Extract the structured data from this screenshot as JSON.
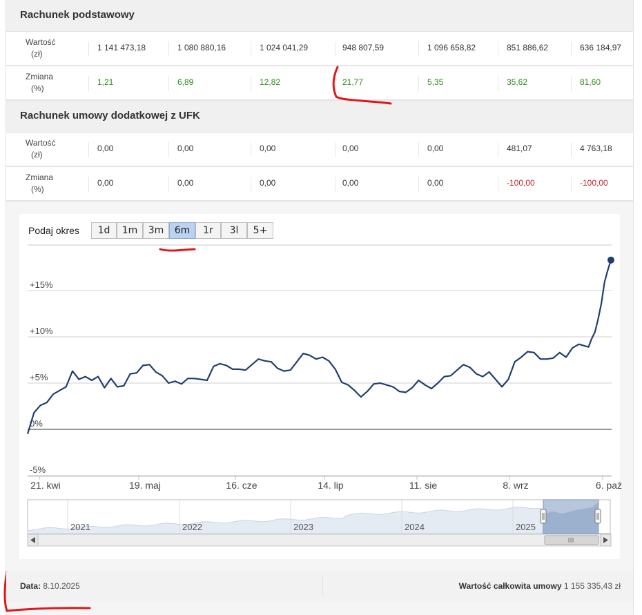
{
  "sections": [
    {
      "title": "Rachunek podstawowy",
      "rows": [
        {
          "label_line1": "Wartość",
          "label_line2": "(zł)",
          "values": [
            "1 141 473,18",
            "1 080 880,16",
            "1 024 041,29",
            "948 807,59",
            "1 096 658,82",
            "851 886,62",
            "636 184,97"
          ],
          "kinds": [
            "n",
            "n",
            "n",
            "n",
            "n",
            "n",
            "n"
          ]
        },
        {
          "label_line1": "Zmiana",
          "label_line2": "(%)",
          "values": [
            "1,21",
            "6,89",
            "12,82",
            "21,77",
            "5,35",
            "35,62",
            "81,60"
          ],
          "kinds": [
            "pos",
            "pos",
            "pos",
            "pos",
            "pos",
            "pos",
            "pos"
          ]
        }
      ]
    },
    {
      "title": "Rachunek umowy dodatkowej z UFK",
      "rows": [
        {
          "label_line1": "Wartość",
          "label_line2": "(zł)",
          "values": [
            "0,00",
            "0,00",
            "0,00",
            "0,00",
            "0,00",
            "481,07",
            "4 763,18"
          ],
          "kinds": [
            "n",
            "n",
            "n",
            "n",
            "n",
            "n",
            "n"
          ]
        },
        {
          "label_line1": "Zmiana",
          "label_line2": "(%)",
          "values": [
            "0,00",
            "0,00",
            "0,00",
            "0,00",
            "0,00",
            "-100,00",
            "-100,00"
          ],
          "kinds": [
            "n",
            "n",
            "n",
            "n",
            "n",
            "neg",
            "neg"
          ]
        }
      ]
    }
  ],
  "period_selector": {
    "label": "Podaj okres",
    "buttons": [
      "1d",
      "1m",
      "3m",
      "6m",
      "1r",
      "3l",
      "5+"
    ],
    "active": "6m"
  },
  "chart_data": {
    "type": "line",
    "y_ticks": [
      "+15%",
      "+10%",
      "+5%",
      "0%",
      "-5%"
    ],
    "y_tick_values": [
      15,
      10,
      5,
      0,
      -5
    ],
    "ylim": [
      -5,
      20
    ],
    "x_ticks": [
      "21. kwi",
      "19. maj",
      "16. cze",
      "14. lip",
      "11. sie",
      "8. wrz",
      "6. paź"
    ],
    "xlim": [
      "2025-04-09",
      "2025-10-08"
    ],
    "series": [
      {
        "color": "#1f3f6e",
        "points": [
          [
            "2025-04-09",
            -0.5
          ],
          [
            "2025-04-11",
            1.8
          ],
          [
            "2025-04-13",
            2.6
          ],
          [
            "2025-04-15",
            2.9
          ],
          [
            "2025-04-17",
            3.8
          ],
          [
            "2025-04-19",
            4.2
          ],
          [
            "2025-04-21",
            4.6
          ],
          [
            "2025-04-23",
            6.3
          ],
          [
            "2025-04-25",
            5.4
          ],
          [
            "2025-04-27",
            5.7
          ],
          [
            "2025-04-29",
            5.3
          ],
          [
            "2025-05-01",
            5.7
          ],
          [
            "2025-05-03",
            4.5
          ],
          [
            "2025-05-05",
            5.5
          ],
          [
            "2025-05-07",
            4.6
          ],
          [
            "2025-05-09",
            4.7
          ],
          [
            "2025-05-11",
            6.0
          ],
          [
            "2025-05-13",
            6.1
          ],
          [
            "2025-05-15",
            6.9
          ],
          [
            "2025-05-17",
            7.0
          ],
          [
            "2025-05-19",
            6.2
          ],
          [
            "2025-05-21",
            5.8
          ],
          [
            "2025-05-23",
            5.0
          ],
          [
            "2025-05-25",
            5.2
          ],
          [
            "2025-05-27",
            4.9
          ],
          [
            "2025-05-29",
            5.5
          ],
          [
            "2025-05-31",
            5.5
          ],
          [
            "2025-06-02",
            5.4
          ],
          [
            "2025-06-04",
            5.3
          ],
          [
            "2025-06-06",
            6.8
          ],
          [
            "2025-06-08",
            7.1
          ],
          [
            "2025-06-10",
            6.9
          ],
          [
            "2025-06-12",
            6.5
          ],
          [
            "2025-06-14",
            6.5
          ],
          [
            "2025-06-16",
            6.4
          ],
          [
            "2025-06-18",
            7.0
          ],
          [
            "2025-06-20",
            7.6
          ],
          [
            "2025-06-22",
            7.4
          ],
          [
            "2025-06-24",
            7.3
          ],
          [
            "2025-06-26",
            6.6
          ],
          [
            "2025-06-28",
            6.3
          ],
          [
            "2025-06-30",
            6.4
          ],
          [
            "2025-07-02",
            7.3
          ],
          [
            "2025-07-04",
            8.2
          ],
          [
            "2025-07-06",
            8.0
          ],
          [
            "2025-07-08",
            7.6
          ],
          [
            "2025-07-10",
            7.8
          ],
          [
            "2025-07-12",
            7.4
          ],
          [
            "2025-07-14",
            6.5
          ],
          [
            "2025-07-16",
            5.1
          ],
          [
            "2025-07-18",
            4.8
          ],
          [
            "2025-07-20",
            4.2
          ],
          [
            "2025-07-22",
            3.5
          ],
          [
            "2025-07-24",
            4.1
          ],
          [
            "2025-07-26",
            4.9
          ],
          [
            "2025-07-28",
            5.0
          ],
          [
            "2025-07-30",
            4.8
          ],
          [
            "2025-08-01",
            4.6
          ],
          [
            "2025-08-03",
            4.1
          ],
          [
            "2025-08-05",
            4.0
          ],
          [
            "2025-08-07",
            4.5
          ],
          [
            "2025-08-09",
            5.3
          ],
          [
            "2025-08-11",
            4.8
          ],
          [
            "2025-08-13",
            4.4
          ],
          [
            "2025-08-15",
            5.0
          ],
          [
            "2025-08-17",
            5.7
          ],
          [
            "2025-08-19",
            5.8
          ],
          [
            "2025-08-21",
            6.4
          ],
          [
            "2025-08-23",
            7.0
          ],
          [
            "2025-08-25",
            6.7
          ],
          [
            "2025-08-27",
            6.0
          ],
          [
            "2025-08-29",
            5.7
          ],
          [
            "2025-08-31",
            6.2
          ],
          [
            "2025-09-02",
            5.4
          ],
          [
            "2025-09-04",
            4.6
          ],
          [
            "2025-09-06",
            5.4
          ],
          [
            "2025-09-08",
            7.3
          ],
          [
            "2025-09-10",
            7.8
          ],
          [
            "2025-09-12",
            8.4
          ],
          [
            "2025-09-14",
            8.3
          ],
          [
            "2025-09-16",
            7.6
          ],
          [
            "2025-09-18",
            7.6
          ],
          [
            "2025-09-20",
            7.7
          ],
          [
            "2025-09-22",
            8.3
          ],
          [
            "2025-09-24",
            7.8
          ],
          [
            "2025-09-26",
            8.8
          ],
          [
            "2025-09-28",
            9.2
          ],
          [
            "2025-09-30",
            9.0
          ],
          [
            "2025-10-01",
            8.9
          ],
          [
            "2025-10-02",
            9.8
          ],
          [
            "2025-10-03",
            10.5
          ],
          [
            "2025-10-04",
            11.9
          ],
          [
            "2025-10-05",
            13.6
          ],
          [
            "2025-10-06",
            15.9
          ],
          [
            "2025-10-07",
            17.2
          ],
          [
            "2025-10-08",
            18.3
          ]
        ]
      }
    ],
    "navigator": {
      "year_labels": [
        "2021",
        "2022",
        "2023",
        "2024",
        "2025"
      ]
    },
    "grid": true
  },
  "footer": {
    "date_label": "Data:",
    "date_value": "8.10.2025",
    "total_label": "Wartość całkowita umowy",
    "total_value": "1 155 335,43 zł"
  },
  "icons": {
    "scroll_left": "arrow-left-icon",
    "scroll_right": "arrow-right-icon",
    "grip": "grip-icon"
  }
}
